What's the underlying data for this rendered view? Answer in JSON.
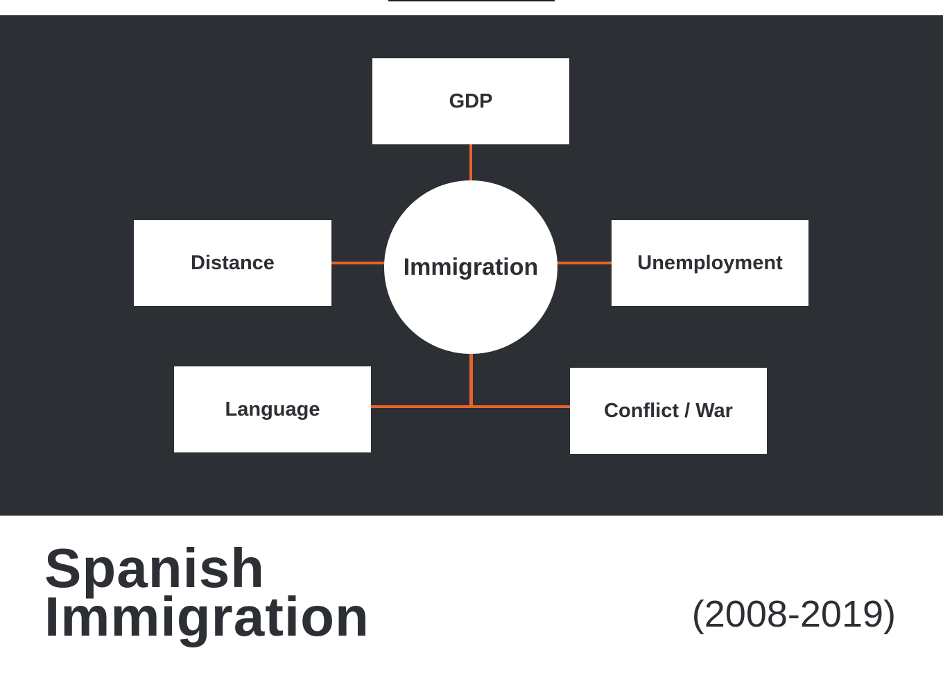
{
  "diagram": {
    "center": "Immigration",
    "factors": {
      "top": "GDP",
      "left": "Distance",
      "right": "Unemployment",
      "bottom_left": "Language",
      "bottom_right": "Conflict / War"
    }
  },
  "footer": {
    "title_line1": "Spanish",
    "title_line2": "Immigration",
    "years": "(2008-2019)"
  },
  "colors": {
    "panel": "#2c2f33",
    "connector": "#e8622c",
    "node": "#ffffff",
    "text": "#2c2f33"
  }
}
